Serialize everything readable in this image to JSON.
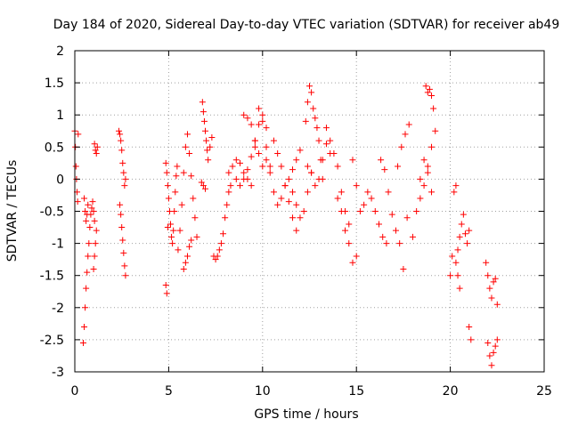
{
  "chart_data": {
    "type": "scatter",
    "title": "Day 184 of 2020, Sidereal Day-to-day VTEC variation (SDTVAR) for receiver ab49",
    "xlabel": "GPS time / hours",
    "ylabel": "SDTVAR / TECUs",
    "xlim": [
      0,
      25
    ],
    "ylim": [
      -3,
      2
    ],
    "xticks": [
      0,
      5,
      10,
      15,
      20,
      25
    ],
    "xtick_labels": [
      "0",
      "5",
      "10",
      "15",
      "20",
      "25"
    ],
    "yticks": [
      -3,
      -2.5,
      -2,
      -1.5,
      -1,
      -0.5,
      0,
      0.5,
      1,
      1.5,
      2
    ],
    "ytick_labels": [
      "-3",
      "-2.5",
      "-2",
      "-1.5",
      "-1",
      "-0.5",
      "0",
      "0.5",
      "1",
      "1.5",
      "2"
    ],
    "grid": true,
    "marker": "+",
    "color": "#ff0000",
    "series": [
      {
        "name": "s1",
        "x": [
          0.0,
          0.03,
          0.06,
          0.09,
          0.12,
          0.15,
          0.18
        ],
        "y": [
          0.75,
          0.5,
          0.2,
          0.0,
          -0.2,
          -0.35,
          0.7
        ]
      },
      {
        "name": "s2",
        "x": [
          0.45,
          0.5,
          0.55,
          0.6,
          0.65,
          0.7,
          0.75,
          0.8,
          0.85,
          0.9,
          0.95,
          1.0,
          1.05
        ],
        "y": [
          -2.55,
          -2.3,
          -2.0,
          -1.7,
          -1.45,
          -1.2,
          -1.0,
          -0.75,
          -0.55,
          -0.45,
          -0.35,
          -0.5,
          -0.65
        ]
      },
      {
        "name": "s3",
        "x": [
          0.5,
          0.55,
          0.6,
          0.65,
          0.7
        ],
        "y": [
          -0.3,
          -0.5,
          -0.65,
          -0.55,
          -0.4
        ]
      },
      {
        "name": "s4",
        "x": [
          1.05,
          1.1,
          1.15,
          1.2
        ],
        "y": [
          0.55,
          0.45,
          0.4,
          0.5
        ]
      },
      {
        "name": "s5",
        "x": [
          1.0,
          1.05,
          1.1,
          1.15
        ],
        "y": [
          -1.4,
          -1.2,
          -1.0,
          -0.8
        ]
      },
      {
        "name": "s6",
        "x": [
          2.35,
          2.4,
          2.45,
          2.5,
          2.55,
          2.6,
          2.65,
          2.7
        ],
        "y": [
          0.75,
          0.7,
          0.6,
          0.45,
          0.25,
          0.1,
          -0.1,
          0.0
        ]
      },
      {
        "name": "s7",
        "x": [
          2.4,
          2.45,
          2.5,
          2.55,
          2.6,
          2.65,
          2.7
        ],
        "y": [
          -0.4,
          -0.55,
          -0.75,
          -0.95,
          -1.15,
          -1.35,
          -1.5
        ]
      },
      {
        "name": "s8",
        "x": [
          4.85,
          4.9,
          4.95
        ],
        "y": [
          -1.65,
          -1.78,
          -0.75
        ]
      },
      {
        "name": "s9",
        "x": [
          4.85,
          4.9,
          4.95,
          5.0,
          5.05,
          5.1,
          5.15,
          5.2,
          5.25,
          5.3,
          5.35,
          5.4,
          5.45
        ],
        "y": [
          0.25,
          0.1,
          -0.1,
          -0.3,
          -0.5,
          -0.7,
          -0.9,
          -1.0,
          -0.8,
          -0.5,
          -0.2,
          0.05,
          0.2
        ]
      },
      {
        "name": "s10",
        "x": [
          5.5,
          5.6,
          5.7,
          5.8,
          5.9,
          6.0,
          6.1,
          6.2,
          6.3,
          6.4,
          6.5
        ],
        "y": [
          -1.1,
          -0.8,
          -0.4,
          0.1,
          0.5,
          0.7,
          0.4,
          0.05,
          -0.3,
          -0.6,
          -0.9
        ]
      },
      {
        "name": "s11",
        "x": [
          5.8,
          5.9,
          6.0,
          6.1,
          6.2
        ],
        "y": [
          -1.4,
          -1.3,
          -1.2,
          -1.05,
          -0.95
        ]
      },
      {
        "name": "s12",
        "x": [
          6.8,
          6.85,
          6.9,
          6.95,
          7.0,
          7.05,
          7.1,
          7.2,
          7.3
        ],
        "y": [
          1.2,
          1.05,
          0.9,
          0.75,
          0.6,
          0.45,
          0.3,
          0.5,
          0.65
        ]
      },
      {
        "name": "s13",
        "x": [
          6.75,
          6.85,
          6.95
        ],
        "y": [
          -0.05,
          -0.1,
          -0.15
        ]
      },
      {
        "name": "s14",
        "x": [
          7.4,
          7.5,
          7.6,
          7.7,
          7.8,
          7.9,
          8.0,
          8.1,
          8.2,
          8.3
        ],
        "y": [
          -1.2,
          -1.25,
          -1.2,
          -1.1,
          -1.0,
          -0.85,
          -0.6,
          -0.4,
          -0.2,
          -0.1
        ]
      },
      {
        "name": "s15",
        "x": [
          8.2,
          8.4,
          8.6,
          8.8,
          9.0,
          9.2,
          9.4,
          9.6,
          9.8,
          10.0,
          10.2,
          10.4
        ],
        "y": [
          0.1,
          0.2,
          0.3,
          0.25,
          0.1,
          0.0,
          -0.1,
          0.5,
          1.1,
          0.9,
          0.5,
          0.2
        ]
      },
      {
        "name": "s16",
        "x": [
          8.6,
          8.8,
          9.0,
          9.2,
          9.4,
          9.6,
          9.8,
          10.0,
          10.2
        ],
        "y": [
          0.0,
          -0.1,
          0.0,
          0.15,
          0.35,
          0.6,
          0.85,
          1.0,
          0.8
        ]
      },
      {
        "name": "s17",
        "x": [
          9.0,
          9.2,
          9.4,
          9.6,
          9.8,
          10.0,
          10.2,
          10.4,
          10.6,
          10.8,
          11.0,
          11.2,
          11.4,
          11.6,
          11.8,
          12.0
        ],
        "y": [
          1.0,
          0.95,
          0.85,
          0.6,
          0.4,
          0.2,
          0.3,
          0.1,
          -0.2,
          -0.4,
          -0.3,
          -0.1,
          0.0,
          0.15,
          0.3,
          0.45
        ]
      },
      {
        "name": "s18",
        "x": [
          10.6,
          10.8,
          11.0,
          11.2,
          11.4,
          11.6,
          11.8
        ],
        "y": [
          0.6,
          0.4,
          0.2,
          -0.1,
          -0.35,
          -0.6,
          -0.8
        ]
      },
      {
        "name": "s19",
        "x": [
          11.6,
          11.8,
          12.0,
          12.2,
          12.4,
          12.6
        ],
        "y": [
          -0.2,
          -0.4,
          -0.6,
          -0.5,
          -0.2,
          0.1
        ]
      },
      {
        "name": "s20",
        "x": [
          12.3,
          12.4,
          12.5,
          12.6,
          12.7,
          12.8,
          12.9,
          13.0,
          13.1,
          13.2
        ],
        "y": [
          0.9,
          1.2,
          1.45,
          1.35,
          1.1,
          0.95,
          0.8,
          0.6,
          0.3,
          0.0
        ]
      },
      {
        "name": "s21",
        "x": [
          12.4,
          12.6,
          12.8,
          13.0,
          13.2,
          13.4,
          13.6
        ],
        "y": [
          0.2,
          0.1,
          -0.1,
          0.0,
          0.3,
          0.55,
          0.4
        ]
      },
      {
        "name": "s22",
        "x": [
          13.4,
          13.6,
          13.8,
          14.0,
          14.2,
          14.4,
          14.6
        ],
        "y": [
          0.8,
          0.6,
          0.4,
          0.2,
          -0.2,
          -0.5,
          -0.7
        ]
      },
      {
        "name": "s23",
        "x": [
          14.0,
          14.2,
          14.4,
          14.6,
          14.8,
          15.0
        ],
        "y": [
          -0.3,
          -0.5,
          -0.8,
          -1.0,
          -1.3,
          -1.2
        ]
      },
      {
        "name": "s24",
        "x": [
          14.8,
          15.0,
          15.2,
          15.4,
          15.6,
          15.8,
          16.0,
          16.2,
          16.4,
          16.6
        ],
        "y": [
          0.3,
          -0.1,
          -0.5,
          -0.4,
          -0.2,
          -0.3,
          -0.5,
          -0.7,
          -0.9,
          -1.0
        ]
      },
      {
        "name": "s25",
        "x": [
          16.3,
          16.5,
          16.7,
          16.9,
          17.1,
          17.3,
          17.5,
          17.7
        ],
        "y": [
          0.3,
          0.15,
          -0.2,
          -0.55,
          -0.8,
          -1.0,
          -1.4,
          -0.6
        ]
      },
      {
        "name": "s26",
        "x": [
          17.2,
          17.4,
          17.6,
          17.8
        ],
        "y": [
          0.2,
          0.5,
          0.7,
          0.85
        ]
      },
      {
        "name": "s27",
        "x": [
          18.0,
          18.2,
          18.4,
          18.6,
          18.8,
          19.0
        ],
        "y": [
          -0.9,
          -0.5,
          0.0,
          0.3,
          0.1,
          -0.2
        ]
      },
      {
        "name": "s28",
        "x": [
          18.7,
          18.8,
          18.9,
          19.0,
          19.1,
          19.2
        ],
        "y": [
          1.45,
          1.35,
          1.4,
          1.3,
          1.1,
          0.75
        ]
      },
      {
        "name": "s29",
        "x": [
          18.4,
          18.6,
          18.8,
          19.0
        ],
        "y": [
          -0.3,
          -0.1,
          0.2,
          0.5
        ]
      },
      {
        "name": "s30",
        "x": [
          20.0,
          20.1,
          20.2,
          20.3
        ],
        "y": [
          -1.5,
          -1.2,
          -0.2,
          -0.1
        ]
      },
      {
        "name": "s31",
        "x": [
          20.3,
          20.4,
          20.5,
          20.6,
          20.7,
          20.8,
          20.9,
          21.0
        ],
        "y": [
          -1.3,
          -1.1,
          -0.9,
          -0.7,
          -0.55,
          -0.85,
          -1.0,
          -0.8
        ]
      },
      {
        "name": "s32",
        "x": [
          20.4,
          20.5
        ],
        "y": [
          -1.5,
          -1.7
        ]
      },
      {
        "name": "s33",
        "x": [
          21.0,
          21.1
        ],
        "y": [
          -2.3,
          -2.5
        ]
      },
      {
        "name": "s34",
        "x": [
          21.9,
          22.0,
          22.1,
          22.2,
          22.3,
          22.4,
          22.5
        ],
        "y": [
          -1.3,
          -1.5,
          -1.7,
          -1.85,
          -1.6,
          -1.55,
          -1.95
        ]
      },
      {
        "name": "s35",
        "x": [
          22.0,
          22.1,
          22.2,
          22.3,
          22.4,
          22.5
        ],
        "y": [
          -2.55,
          -2.75,
          -2.9,
          -2.7,
          -2.6,
          -2.5
        ]
      }
    ]
  }
}
